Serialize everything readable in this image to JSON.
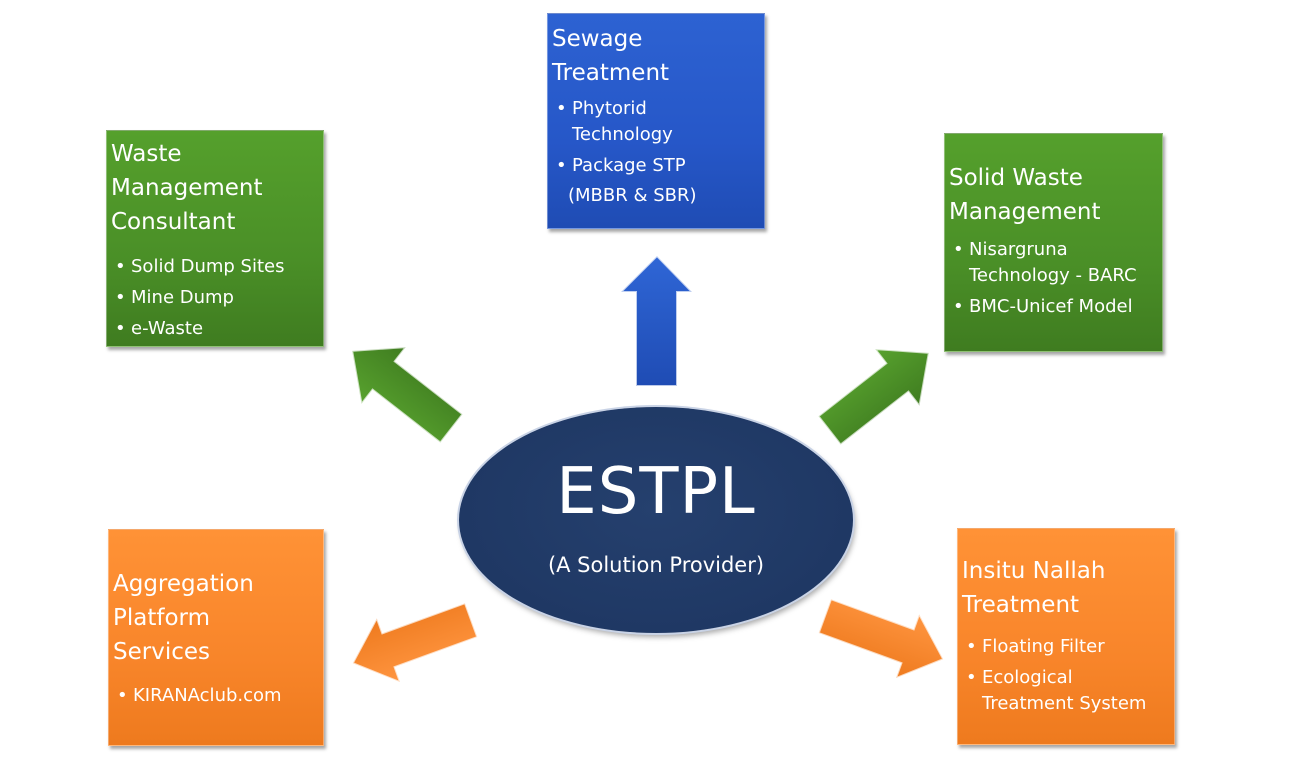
{
  "center": {
    "title": "ESTPL",
    "subtitle": "(A Solution Provider)"
  },
  "boxes": {
    "sewage": {
      "title_lines": [
        "Sewage",
        "Treatment"
      ],
      "items": [
        "Phytorid",
        "Technology",
        "Package STP",
        "(MBBR & SBR)"
      ]
    },
    "waste_consultant": {
      "title_lines": [
        "Waste",
        "Management",
        "Consultant"
      ],
      "items": [
        "Solid Dump Sites",
        "Mine Dump",
        "e-Waste"
      ]
    },
    "solid_waste": {
      "title_lines": [
        "Solid Waste",
        "Management"
      ],
      "items": [
        "Nisargruna",
        "Technology - BARC",
        "BMC-Unicef Model"
      ]
    },
    "aggregation": {
      "title_lines": [
        "Aggregation",
        "Platform",
        "Services"
      ],
      "items": [
        "KIRANAclub.com"
      ]
    },
    "nallah": {
      "title_lines": [
        "Insitu Nallah",
        "Treatment"
      ],
      "items": [
        "Floating Filter",
        "Ecological",
        "Treatment System"
      ]
    }
  },
  "colors": {
    "green": "#4a8f27",
    "blue": "#2657c8",
    "orange": "#f8852a",
    "navy": "#1f3864"
  }
}
